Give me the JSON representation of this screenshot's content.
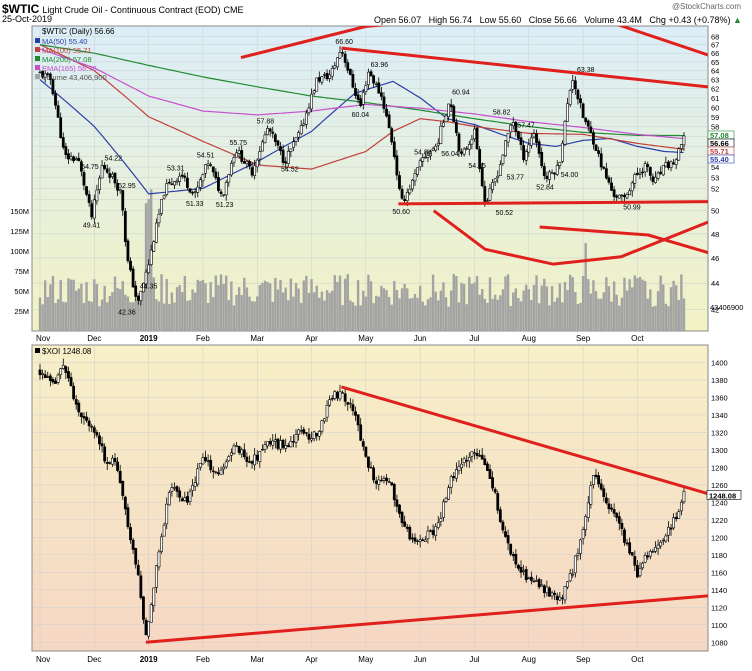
{
  "header": {
    "symbol": "$WTIC",
    "name": "Light Crude Oil - Continuous Contract (EOD)",
    "exchange": "CME",
    "date": "25-Oct-2019",
    "open_label": "Open",
    "open": "56.07",
    "high_label": "High",
    "high": "56.74",
    "low_label": "Low",
    "low": "55.60",
    "close_label": "Close",
    "close": "56.66",
    "volume_label": "Volume",
    "volume": "43.4M",
    "chg_label": "Chg",
    "chg": "+0.43 (+0.78%)",
    "watermark": "@StockCharts.com",
    "up_arrow": "▲"
  },
  "colors": {
    "top_bg_top": "#dbeef8",
    "top_bg_bottom": "#f2f2c4",
    "bottom_bg_top": "#f7f0c8",
    "bottom_bg_bottom": "#f6d7c4",
    "candle": "#000000",
    "volume": "#a3a3a3",
    "ma50": "#2b3fa8",
    "ma100": "#c2403a",
    "ma200": "#1f8a32",
    "ema165": "#c64fd0",
    "trend": "#e0201c",
    "grid": "#cfcfcf"
  },
  "chart_data": [
    {
      "type": "candlestick",
      "title": "$WTIC (Daily) 56.66",
      "x_ticks": [
        "Nov",
        "Dec",
        "2019",
        "Feb",
        "Mar",
        "Apr",
        "May",
        "Jun",
        "Jul",
        "Aug",
        "Sep",
        "Oct"
      ],
      "x_tick_months": [
        0,
        1,
        2,
        3,
        4,
        5,
        6,
        7,
        8,
        9,
        10,
        11
      ],
      "x_domain": [
        0,
        12.3
      ],
      "y_ticks": [
        42,
        44,
        46,
        48,
        50,
        51,
        52,
        53,
        54,
        55,
        56,
        57,
        58,
        59,
        60,
        61,
        62,
        63,
        64,
        65,
        66,
        67,
        68
      ],
      "y_domain": [
        40.8,
        69
      ],
      "y_scale": "log",
      "anchors_months": [
        0,
        0.2,
        0.45,
        0.7,
        0.95,
        1.15,
        1.35,
        1.5,
        1.6,
        1.8,
        2.0,
        2.3,
        2.6,
        2.85,
        3.1,
        3.35,
        3.6,
        3.9,
        4.2,
        4.5,
        4.8,
        5.1,
        5.35,
        5.55,
        5.75,
        5.9,
        6.05,
        6.3,
        6.5,
        6.65,
        6.85,
        7.05,
        7.3,
        7.55,
        7.75,
        8.0,
        8.2,
        8.45,
        8.7,
        8.9,
        9.1,
        9.3,
        9.55,
        9.8,
        10.0,
        10.2,
        10.35,
        10.55,
        10.75,
        10.95,
        11.15,
        11.3,
        11.5,
        11.7,
        11.85
      ],
      "anchors_price": [
        63.7,
        63.0,
        55.0,
        54.75,
        49.41,
        54.22,
        52.95,
        51.5,
        46.0,
        42.36,
        45.5,
        52.0,
        53.31,
        51.33,
        54.51,
        51.23,
        55.75,
        53.5,
        57.88,
        54.52,
        57.5,
        63.0,
        63.5,
        66.6,
        62.5,
        60.04,
        63.96,
        61.0,
        56.0,
        50.6,
        52.5,
        54.84,
        56.04,
        60.94,
        54.85,
        57.5,
        50.52,
        53.77,
        58.82,
        55.0,
        57.47,
        52.84,
        54.0,
        63.38,
        59.0,
        56.5,
        54.0,
        51.5,
        50.99,
        53.0,
        54.2,
        52.5,
        54.0,
        54.5,
        56.66
      ],
      "data_labels": [
        {
          "text": "54.75",
          "m": 0.92,
          "p": 54.75
        },
        {
          "text": "54.22",
          "m": 1.35,
          "p": 54.22
        },
        {
          "text": "52.95",
          "m": 1.6,
          "p": 52.95
        },
        {
          "text": "49.41",
          "m": 0.95,
          "p": 49.41
        },
        {
          "text": "44.35",
          "m": 2.0,
          "p": 44.35
        },
        {
          "text": "42.36",
          "m": 1.6,
          "p": 42.36
        },
        {
          "text": "53.31",
          "m": 2.5,
          "p": 53.31
        },
        {
          "text": "54.51",
          "m": 3.05,
          "p": 54.51
        },
        {
          "text": "51.33",
          "m": 2.85,
          "p": 51.33
        },
        {
          "text": "51.23",
          "m": 3.4,
          "p": 51.23
        },
        {
          "text": "55.75",
          "m": 3.65,
          "p": 55.75
        },
        {
          "text": "57.88",
          "m": 4.15,
          "p": 57.88
        },
        {
          "text": "54.52",
          "m": 4.6,
          "p": 54.52
        },
        {
          "text": "66.60",
          "m": 5.6,
          "p": 66.6
        },
        {
          "text": "60.04",
          "m": 5.9,
          "p": 60.04
        },
        {
          "text": "63.96",
          "m": 6.25,
          "p": 63.96
        },
        {
          "text": "54.84",
          "m": 7.05,
          "p": 54.84
        },
        {
          "text": "50.60",
          "m": 6.65,
          "p": 50.6
        },
        {
          "text": "56.04",
          "m": 7.55,
          "p": 56.04
        },
        {
          "text": "60.94",
          "m": 7.75,
          "p": 60.94
        },
        {
          "text": "54.85",
          "m": 8.05,
          "p": 54.85
        },
        {
          "text": "58.82",
          "m": 8.5,
          "p": 58.82
        },
        {
          "text": "57.47",
          "m": 8.95,
          "p": 57.47
        },
        {
          "text": "53.77",
          "m": 8.75,
          "p": 53.77
        },
        {
          "text": "50.52",
          "m": 8.55,
          "p": 50.52
        },
        {
          "text": "52.84",
          "m": 9.3,
          "p": 52.84
        },
        {
          "text": "54.00",
          "m": 9.75,
          "p": 54.0
        },
        {
          "text": "63.38",
          "m": 10.05,
          "p": 63.38
        },
        {
          "text": "50.99",
          "m": 10.9,
          "p": 50.99
        }
      ],
      "moving_averages": [
        {
          "name": "MA(50)",
          "value": "55.40",
          "color": "#2b3fa8",
          "m": [
            0,
            1,
            2,
            3,
            4,
            5,
            5.8,
            6.5,
            7.0,
            7.5,
            8.0,
            8.5,
            9.0,
            9.5,
            10.0,
            10.5,
            11.0,
            11.5,
            11.85
          ],
          "p": [
            63.0,
            58.0,
            51.5,
            52.0,
            54.5,
            57.5,
            61.5,
            62.8,
            61.0,
            58.8,
            58.2,
            57.2,
            56.3,
            56.0,
            56.6,
            56.8,
            56.0,
            55.5,
            55.4
          ]
        },
        {
          "name": "MA(100)",
          "value": "55.71",
          "color": "#c2403a",
          "m": [
            0,
            1,
            2,
            3,
            4,
            5,
            6,
            6.5,
            7.0,
            7.5,
            8.0,
            9.0,
            10.0,
            11.0,
            11.85
          ],
          "p": [
            67.0,
            64.0,
            59.0,
            56.5,
            54.2,
            53.8,
            55.5,
            57.5,
            58.8,
            58.5,
            58.0,
            57.3,
            57.2,
            56.3,
            55.71
          ]
        },
        {
          "name": "MA(200)",
          "value": "57.08",
          "color": "#1f8a32",
          "m": [
            0,
            1,
            2,
            3,
            4,
            5,
            6,
            7,
            8,
            9,
            10,
            11,
            11.85
          ],
          "p": [
            67.0,
            66.0,
            64.6,
            63.3,
            62.2,
            61.2,
            60.5,
            59.7,
            58.8,
            58.0,
            57.4,
            57.1,
            57.08
          ]
        },
        {
          "name": "EMA(165)",
          "value": "56.78",
          "color": "#c64fd0",
          "m": [
            0,
            1,
            2,
            3,
            4,
            5,
            6,
            7,
            8,
            9,
            10,
            11,
            11.85
          ],
          "p": [
            66.5,
            64.3,
            61.2,
            59.6,
            59.2,
            59.6,
            60.3,
            59.9,
            59.3,
            58.5,
            57.9,
            57.2,
            56.78
          ]
        }
      ],
      "volume_name": "Volume",
      "volume_value": "43,406,900",
      "volume_last": "43406900",
      "volume_ticks": [
        "25M",
        "50M",
        "75M",
        "100M",
        "125M",
        "150M"
      ],
      "volume_tick_values": [
        25,
        50,
        75,
        100,
        125,
        150
      ],
      "volume_max_M": 190,
      "volume_typical_M": 55,
      "price_badges": [
        {
          "text": "57.08",
          "color": "#1f8a32"
        },
        {
          "text": "56.66",
          "color": "#000000"
        },
        {
          "text": "55.71",
          "color": "#c2403a"
        },
        {
          "text": "55.40",
          "color": "#2b3fa8"
        }
      ],
      "trendlines": [
        {
          "m": [
            5.55,
            12.3
          ],
          "p": [
            66.6,
            62.2
          ]
        },
        {
          "m": [
            6.6,
            12.3
          ],
          "p": [
            50.6,
            50.8
          ]
        }
      ],
      "arcs": [
        {
          "m": [
            3.7,
            6.0,
            8.4,
            10.6,
            12.3
          ],
          "p": [
            65.5,
            69.2,
            70.5,
            69.5,
            65.8
          ]
        },
        {
          "m": [
            7.25,
            8.2,
            9.45,
            10.7,
            12.3
          ],
          "p": [
            50.0,
            46.7,
            45.5,
            46.1,
            49.0
          ]
        }
      ],
      "volume_arc": {
        "m": [
          9.2,
          11.2,
          12.3
        ],
        "h": [
          130,
          120,
          98
        ]
      }
    },
    {
      "type": "candlestick",
      "title": "$XOI 1248.08",
      "x_ticks": [
        "Nov",
        "Dec",
        "2019",
        "Feb",
        "Mar",
        "Apr",
        "May",
        "Jun",
        "Jul",
        "Aug",
        "Sep",
        "Oct"
      ],
      "x_tick_months": [
        0,
        1,
        2,
        3,
        4,
        5,
        6,
        7,
        8,
        9,
        10,
        11
      ],
      "x_domain": [
        0,
        12.3
      ],
      "y_ticks": [
        1080,
        1100,
        1120,
        1140,
        1160,
        1180,
        1200,
        1220,
        1240,
        1260,
        1280,
        1300,
        1320,
        1340,
        1360,
        1380,
        1400
      ],
      "y_domain": [
        1070,
        1420
      ],
      "y_scale": "linear",
      "anchors_months": [
        0,
        0.25,
        0.45,
        0.7,
        0.95,
        1.2,
        1.4,
        1.6,
        1.8,
        1.95,
        2.15,
        2.4,
        2.7,
        3.0,
        3.3,
        3.6,
        3.9,
        4.2,
        4.5,
        4.8,
        5.1,
        5.35,
        5.55,
        5.8,
        6.0,
        6.2,
        6.4,
        6.6,
        6.85,
        7.05,
        7.3,
        7.6,
        7.8,
        8.05,
        8.3,
        8.55,
        8.8,
        9.05,
        9.3,
        9.55,
        9.8,
        10.0,
        10.2,
        10.4,
        10.6,
        10.8,
        11.0,
        11.2,
        11.45,
        11.7,
        11.85
      ],
      "anchors_price": [
        1390,
        1372,
        1400,
        1340,
        1330,
        1290,
        1285,
        1220,
        1160,
        1085,
        1170,
        1260,
        1240,
        1290,
        1270,
        1305,
        1285,
        1310,
        1305,
        1320,
        1315,
        1360,
        1365,
        1345,
        1290,
        1260,
        1270,
        1230,
        1195,
        1200,
        1210,
        1270,
        1290,
        1295,
        1270,
        1200,
        1165,
        1150,
        1140,
        1125,
        1160,
        1210,
        1275,
        1240,
        1225,
        1190,
        1160,
        1180,
        1200,
        1220,
        1248.08
      ]
    }
  ],
  "bottom_trendlines": [
    {
      "m": [
        5.55,
        12.3
      ],
      "p": [
        1372,
        1250
      ]
    },
    {
      "m": [
        1.95,
        12.3
      ],
      "p": [
        1080,
        1133
      ]
    }
  ],
  "bottom_badge": "1248.08"
}
